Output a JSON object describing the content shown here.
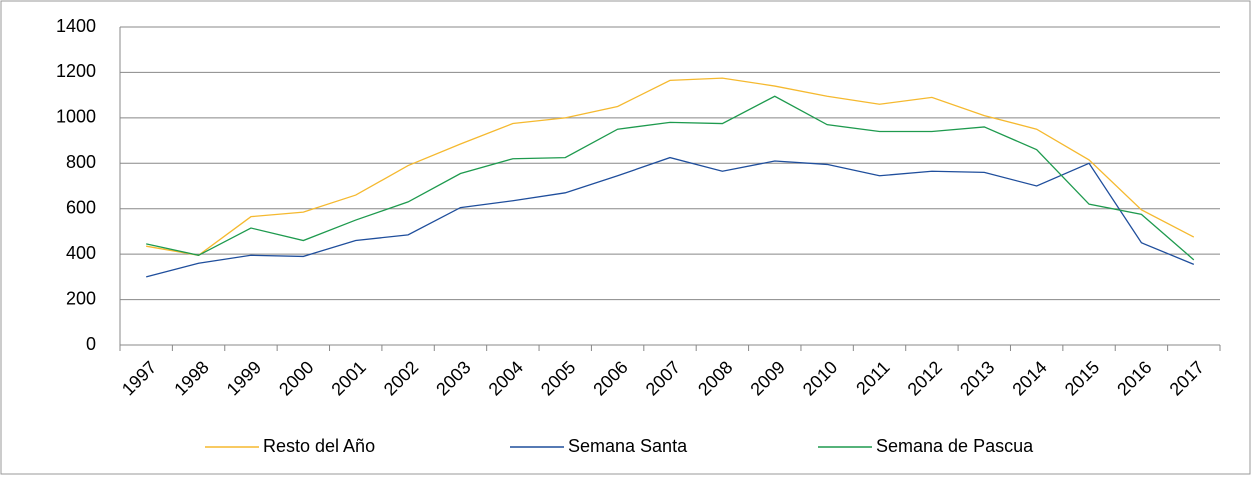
{
  "chart_data": {
    "type": "line",
    "categories": [
      "1997",
      "1998",
      "1999",
      "2000",
      "2001",
      "2002",
      "2003",
      "2004",
      "2005",
      "2006",
      "2007",
      "2008",
      "2009",
      "2010",
      "2011",
      "2012",
      "2013",
      "2014",
      "2015",
      "2016",
      "2017"
    ],
    "series": [
      {
        "name": "Resto del Año",
        "color": "#f5b92f",
        "values": [
          435,
          395,
          565,
          585,
          660,
          790,
          885,
          975,
          1000,
          1050,
          1165,
          1175,
          1140,
          1095,
          1060,
          1090,
          1010,
          950,
          815,
          595,
          475
        ]
      },
      {
        "name": "Semana Santa",
        "color": "#1f4e9c",
        "values": [
          300,
          360,
          395,
          390,
          460,
          485,
          605,
          635,
          670,
          745,
          825,
          765,
          810,
          795,
          745,
          765,
          760,
          700,
          800,
          450,
          355
        ]
      },
      {
        "name": "Semana de Pascua",
        "color": "#1e9a4e",
        "values": [
          445,
          395,
          515,
          460,
          550,
          630,
          755,
          820,
          825,
          950,
          980,
          975,
          1095,
          970,
          940,
          940,
          960,
          860,
          620,
          575,
          375
        ]
      }
    ],
    "ylim": [
      0,
      1400
    ],
    "yticks": [
      0,
      200,
      400,
      600,
      800,
      1000,
      1200,
      1400
    ],
    "grid": true,
    "legend": "bottom"
  }
}
